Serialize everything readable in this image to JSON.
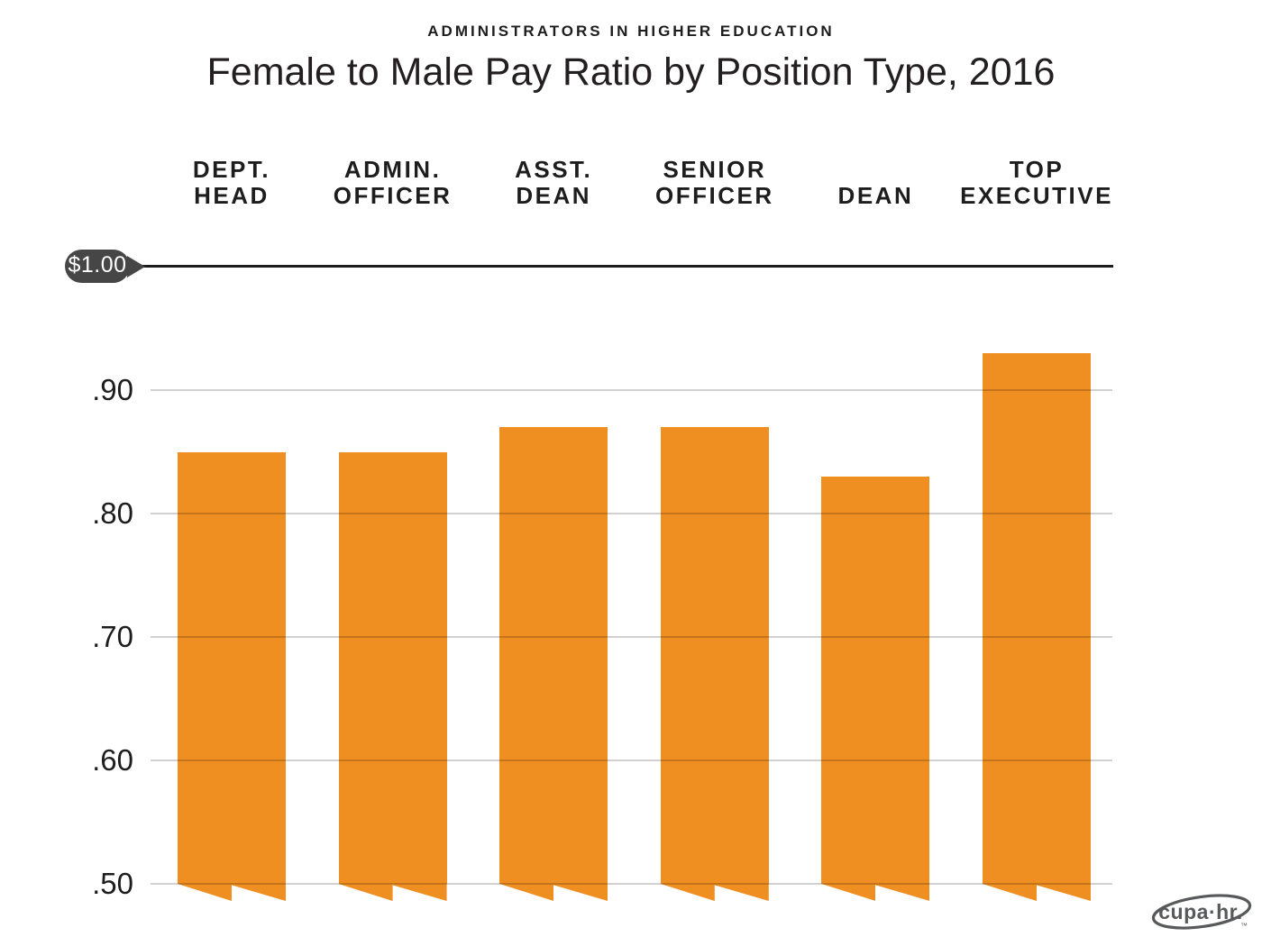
{
  "header": {
    "kicker": "ADMINISTRATORS IN HIGHER EDUCATION",
    "title": "Female to Male Pay Ratio by Position Type, 2016"
  },
  "chart_data": {
    "type": "bar",
    "title": "Female to Male Pay Ratio by Position Type, 2016",
    "subtitle": "ADMINISTRATORS IN HIGHER EDUCATION",
    "categories": [
      "DEPT. HEAD",
      "ADMIN. OFFICER",
      "ASST. DEAN",
      "SENIOR OFFICER",
      "DEAN",
      "TOP EXECUTIVE"
    ],
    "category_label_lines": [
      [
        "DEPT.",
        "HEAD"
      ],
      [
        "ADMIN.",
        "OFFICER"
      ],
      [
        "ASST.",
        "DEAN"
      ],
      [
        "SENIOR",
        "OFFICER"
      ],
      [
        "DEAN"
      ],
      [
        "TOP",
        "EXECUTIVE"
      ]
    ],
    "values": [
      0.85,
      0.85,
      0.87,
      0.87,
      0.83,
      0.93
    ],
    "reference_line": {
      "label": "$1.00",
      "value": 1.0
    },
    "y_ticks": [
      0.9,
      0.8,
      0.7,
      0.6,
      0.5
    ],
    "y_tick_labels": [
      ".90",
      ".80",
      ".70",
      ".60",
      ".50"
    ],
    "ylim": [
      0.5,
      1.0
    ],
    "xlabel": "",
    "ylabel": "",
    "grid": true,
    "legend": false,
    "bar_color": "#EF8E21",
    "gridline_color": "#c9c9c9",
    "reference_line_color": "#1c1c1c",
    "badge_color": "#464646",
    "axis_break": "sawtooth bar bottoms below 0.50 baseline"
  },
  "footer": {
    "logo_text": "cupa·hr.",
    "logo_trademark": "™",
    "logo_color": "#58595b"
  }
}
